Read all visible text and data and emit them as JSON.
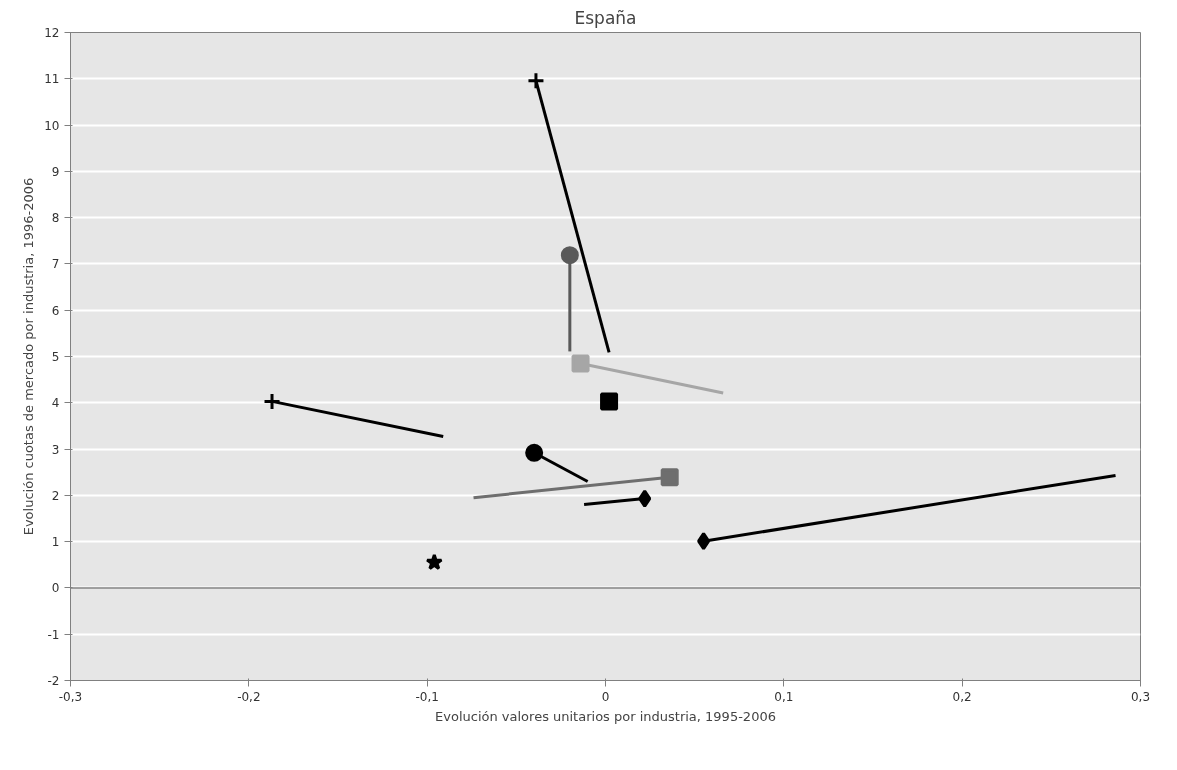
{
  "chart_data": {
    "type": "line",
    "title": "España",
    "xlabel": "Evolución valores unitarios por industria, 1995-2006",
    "ylabel": "Evolución cuotas de mercado por industria, 1996-2006",
    "xlim": [
      -0.3,
      0.3
    ],
    "ylim": [
      -2,
      12
    ],
    "xticks": [
      {
        "value": -0.3,
        "label": "-0,3"
      },
      {
        "value": -0.2,
        "label": "-0,2"
      },
      {
        "value": -0.1,
        "label": "-0,1"
      },
      0,
      {
        "value": 0.1,
        "label": "0,1"
      },
      {
        "value": 0.2,
        "label": "0,2"
      },
      {
        "value": 0.3,
        "label": "0,3"
      }
    ],
    "yticks": [
      -2,
      -1,
      0,
      1,
      2,
      3,
      4,
      5,
      6,
      7,
      8,
      9,
      10,
      11,
      12
    ],
    "grid": "y",
    "series": [
      {
        "color": "#000000",
        "marker": "cross",
        "x": [
          -0.187,
          -0.091
        ],
        "values": [
          4.03,
          3.27
        ]
      },
      {
        "color": "#000000",
        "marker": "star",
        "x": [
          -0.096
        ],
        "values": [
          0.55
        ]
      },
      {
        "color": "#000000",
        "marker": "cross",
        "x": [
          -0.039,
          0.002
        ],
        "values": [
          10.96,
          5.09
        ]
      },
      {
        "color": "#595959",
        "marker": "circle",
        "x": [
          -0.02,
          -0.02
        ],
        "values": [
          7.19,
          5.11
        ]
      },
      {
        "color": "#a6a6a6",
        "marker": "square",
        "x": [
          -0.014,
          0.066
        ],
        "values": [
          4.85,
          4.21
        ]
      },
      {
        "color": "#000000",
        "marker": "square",
        "x": [
          0.002
        ],
        "values": [
          4.03
        ]
      },
      {
        "color": "#000000",
        "marker": "circle",
        "x": [
          -0.04,
          -0.01
        ],
        "values": [
          2.92,
          2.3
        ]
      },
      {
        "color": "#6e6e6e",
        "marker": "square",
        "x": [
          0.036,
          -0.074
        ],
        "values": [
          2.39,
          1.95
        ]
      },
      {
        "color": "#000000",
        "marker": "diamond",
        "x": [
          0.022,
          -0.012
        ],
        "values": [
          1.93,
          1.8
        ]
      },
      {
        "color": "#000000",
        "marker": "diamond",
        "x": [
          0.055,
          0.286
        ],
        "values": [
          1.01,
          2.43
        ]
      }
    ]
  }
}
